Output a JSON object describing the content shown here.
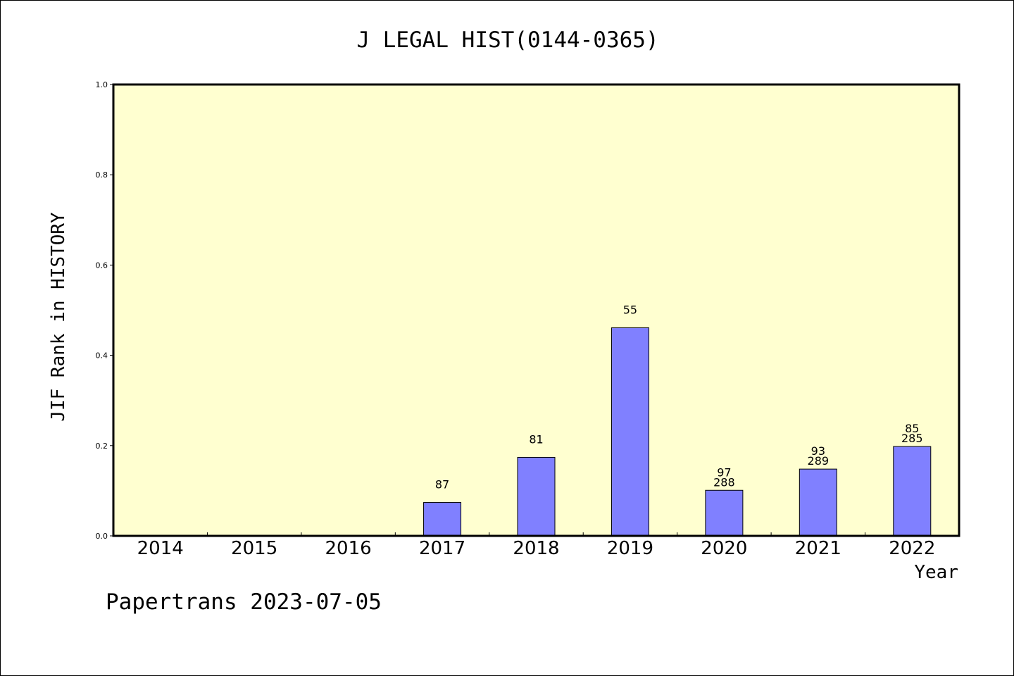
{
  "chart_data": {
    "type": "bar",
    "title": "J LEGAL HIST(0144-0365)",
    "xlabel": "Year",
    "ylabel": "JIF Rank in HISTORY",
    "ylim": [
      0,
      1.0
    ],
    "yticks": [
      "0.0",
      "0.2",
      "0.4",
      "0.6",
      "0.8",
      "1.0"
    ],
    "categories": [
      "2014",
      "2015",
      "2016",
      "2017",
      "2018",
      "2019",
      "2020",
      "2021",
      "2022"
    ],
    "values": [
      null,
      null,
      null,
      0.074,
      0.174,
      0.461,
      0.101,
      0.148,
      0.198
    ],
    "rank_labels": [
      "",
      "",
      "",
      "87",
      "81",
      "55",
      "97",
      "93",
      "85"
    ],
    "total_labels": [
      "",
      "",
      "",
      "",
      "",
      "",
      "288",
      "289",
      "285"
    ],
    "grid": false,
    "colors": {
      "plot_background": "#ffffd0",
      "bar_fill": "#8080ff",
      "bar_stroke": "#000000",
      "axis": "#000000"
    }
  },
  "footer": {
    "credit": "Papertrans 2023-07-05"
  }
}
